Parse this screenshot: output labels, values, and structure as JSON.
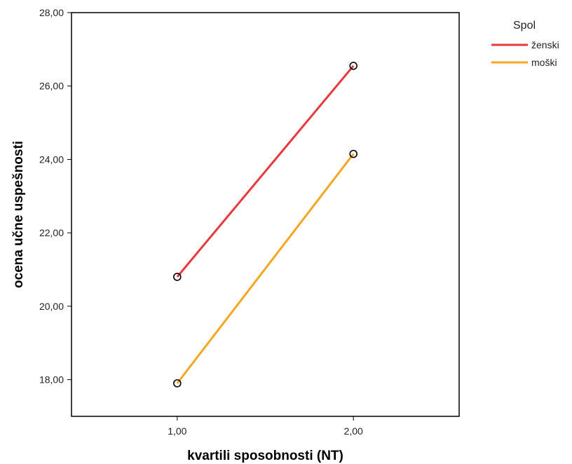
{
  "chart_data": {
    "type": "line",
    "xlabel": "kvartili sposobnosti (NT)",
    "ylabel": "ocena učne uspešnosti",
    "x": [
      1,
      2
    ],
    "x_tick_labels": [
      "1,00",
      "2,00"
    ],
    "xlim": [
      0.4,
      2.6
    ],
    "ylim": [
      17.0,
      28.0
    ],
    "y_ticks": [
      18,
      20,
      22,
      24,
      26,
      28
    ],
    "y_tick_labels": [
      "18,00",
      "20,00",
      "22,00",
      "24,00",
      "26,00",
      "28,00"
    ],
    "legend": {
      "title": "Spol",
      "placement": "right"
    },
    "series": [
      {
        "name": "ženski",
        "values": [
          20.8,
          26.55
        ],
        "color": "#e8393c"
      },
      {
        "name": "moški",
        "values": [
          17.9,
          24.15
        ],
        "color": "#f5a623"
      }
    ],
    "grid": false
  }
}
